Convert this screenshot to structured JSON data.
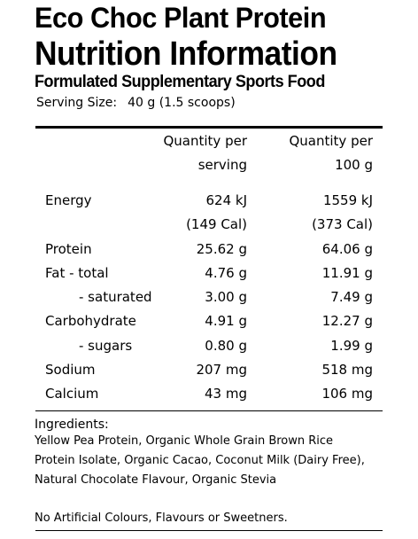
{
  "header": {
    "title_line1": "Eco Choc Plant Protein",
    "title_line2": "Nutrition Information",
    "subtitle": "Formulated Supplementary Sports Food"
  },
  "serving": {
    "label": "Serving Size:",
    "value": "40 g (1.5 scoops)"
  },
  "table": {
    "col_per_serving": [
      "Quantity per",
      "serving"
    ],
    "col_per_100g": [
      "Quantity per",
      "100 g"
    ],
    "rows": [
      {
        "label": "Energy",
        "serving": "624 kJ",
        "per100": "1559 kJ"
      },
      {
        "label": "",
        "serving": "(149 Cal)",
        "per100": "(373 Cal)"
      },
      {
        "label": "Protein",
        "serving": "25.62 g",
        "per100": "64.06 g"
      },
      {
        "label": "Fat - total",
        "serving": "4.76 g",
        "per100": "11.91 g"
      },
      {
        "label": "- saturated",
        "serving": "3.00 g",
        "per100": "7.49 g"
      },
      {
        "label": "Carbohydrate",
        "serving": "4.91 g",
        "per100": "12.27 g"
      },
      {
        "label": "- sugars",
        "serving": "0.80 g",
        "per100": "1.99 g"
      },
      {
        "label": "Sodium",
        "serving": "207 mg",
        "per100": "518 mg"
      },
      {
        "label": "Calcium",
        "serving": "43 mg",
        "per100": "106 mg"
      }
    ]
  },
  "ingredients": {
    "heading": "Ingredients:",
    "lines": [
      "Yellow Pea Protein, Organic Whole Grain Brown Rice",
      "Protein Isolate, Organic Cacao, Coconut Milk (Dairy Free),",
      "Natural Chocolate Flavour, Organic Stevia"
    ],
    "note": "No Artificial Colours, Flavours or Sweetners."
  }
}
